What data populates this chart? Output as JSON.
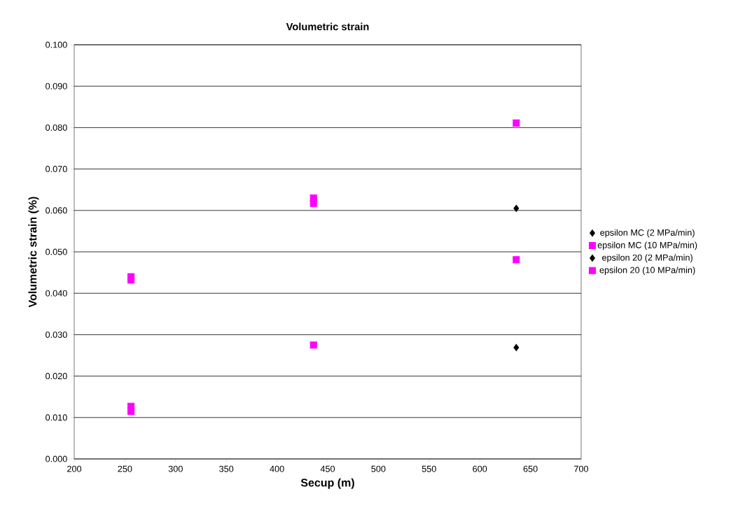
{
  "chart_data": {
    "type": "scatter",
    "title": "Volumetric strain",
    "xlabel": "Secup (m)",
    "ylabel": "Volumetric strain (%)",
    "xlim": [
      200,
      700
    ],
    "xticks": [
      200,
      250,
      300,
      350,
      400,
      450,
      500,
      550,
      600,
      650,
      700
    ],
    "ylim": [
      0,
      0.1
    ],
    "yticks": [
      {
        "value": 0,
        "label": "0.000"
      },
      {
        "value": 0.01,
        "label": "0.010"
      },
      {
        "value": 0.02,
        "label": "0.020"
      },
      {
        "value": 0.03,
        "label": "0.030"
      },
      {
        "value": 0.04,
        "label": "0.040"
      },
      {
        "value": 0.05,
        "label": "0.050"
      },
      {
        "value": 0.06,
        "label": "0.060"
      },
      {
        "value": 0.07,
        "label": "0.070"
      },
      {
        "value": 0.08,
        "label": "0.080"
      },
      {
        "value": 0.09,
        "label": "0.090"
      },
      {
        "value": 0.1,
        "label": "0.100"
      }
    ],
    "grid": "y",
    "legend": "right",
    "series": [
      {
        "name": "epsilon MC (2 MPa/min)",
        "color": "#000000",
        "marker": "diamond",
        "x": [
          636
        ],
        "values": [
          0.0269
        ]
      },
      {
        "name": "epsilon MC (10 MPa/min)",
        "color": "#ff00ff",
        "marker": "square",
        "x": [
          256,
          256,
          436,
          636
        ],
        "values": [
          0.0127,
          0.0115,
          0.0275,
          0.0481
        ]
      },
      {
        "name": "epsilon 20 (2 MPa/min)",
        "color": "#000000",
        "marker": "diamond",
        "x": [
          636
        ],
        "values": [
          0.0605
        ]
      },
      {
        "name": "epsilon 20 (10 MPa/min)",
        "color": "#ff00ff",
        "marker": "square",
        "x": [
          256,
          256,
          436,
          436,
          636
        ],
        "values": [
          0.044,
          0.0432,
          0.063,
          0.0617,
          0.0811
        ]
      }
    ]
  }
}
